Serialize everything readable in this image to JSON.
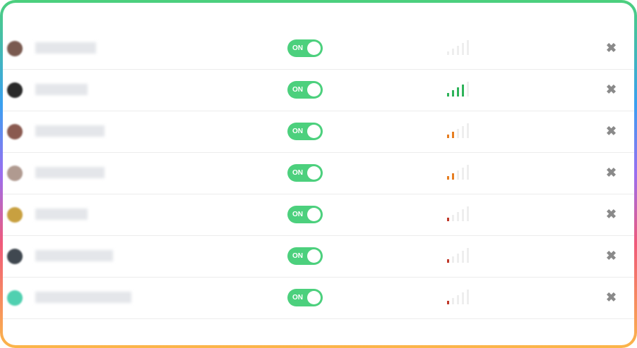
{
  "toggle_label": "ON",
  "close_glyph": "✖",
  "colors": {
    "toggle": "#4cd07d",
    "green": "#2fb35a",
    "orange": "#e67e22",
    "red": "#c0392b",
    "inactive": "#eeeeee"
  },
  "rows": [
    {
      "avatar": "#7a5a50",
      "name_blur_width": 86,
      "signal_level": 0,
      "signal_color": "#eeeeee",
      "toggle": true
    },
    {
      "avatar": "#2a2a2a",
      "name_blur_width": 74,
      "signal_level": 4,
      "signal_color": "#2fb35a",
      "toggle": true
    },
    {
      "avatar": "#8a5a50",
      "name_blur_width": 98,
      "signal_level": 2,
      "signal_color": "#e67e22",
      "toggle": true
    },
    {
      "avatar": "#b09a90",
      "name_blur_width": 98,
      "signal_level": 2,
      "signal_color": "#e67e22",
      "toggle": true
    },
    {
      "avatar": "#c8a040",
      "name_blur_width": 74,
      "signal_level": 1,
      "signal_color": "#c0392b",
      "toggle": true
    },
    {
      "avatar": "#404850",
      "name_blur_width": 110,
      "signal_level": 1,
      "signal_color": "#c0392b",
      "toggle": true
    },
    {
      "avatar": "#50d0b0",
      "name_blur_width": 136,
      "signal_level": 1,
      "signal_color": "#c0392b",
      "toggle": true
    }
  ]
}
